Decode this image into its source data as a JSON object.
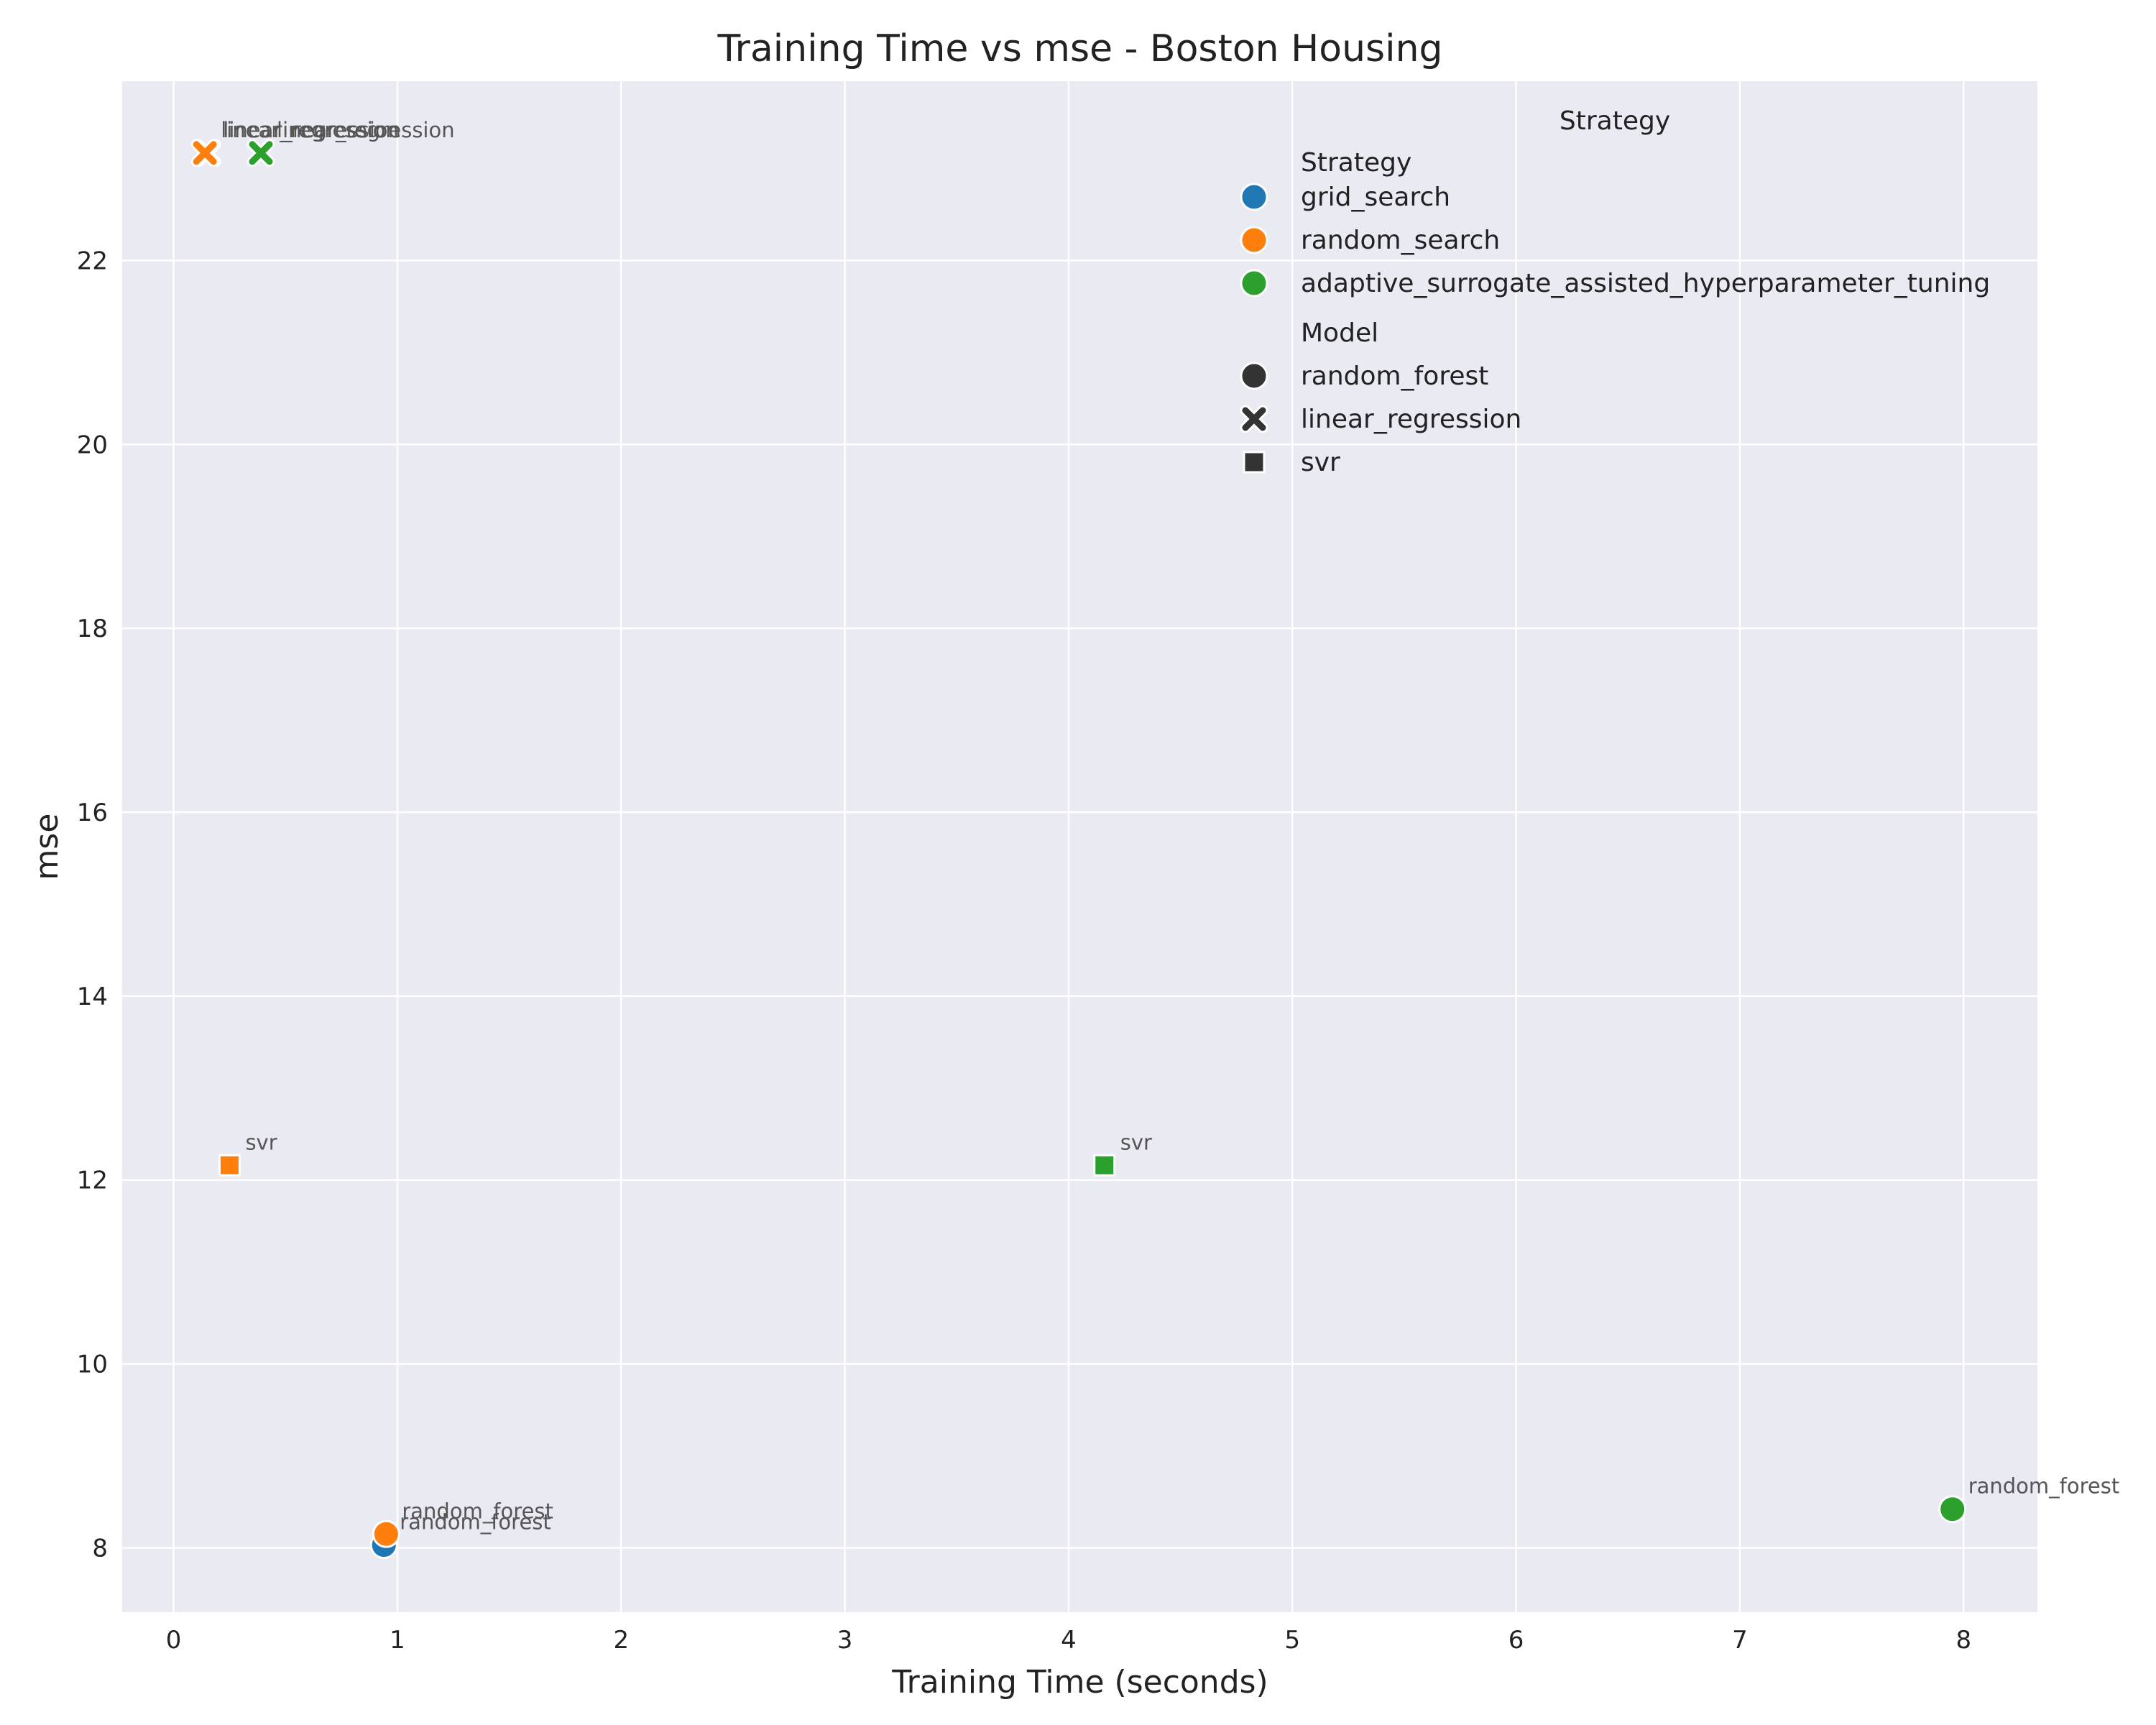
{
  "chart_data": {
    "type": "scatter",
    "title": "Training Time vs mse - Boston Housing",
    "xlabel": "Training Time (seconds)",
    "ylabel": "mse",
    "xlim": [
      -0.23,
      8.33
    ],
    "ylim": [
      7.3,
      23.95
    ],
    "x_ticks": [
      0,
      1,
      2,
      3,
      4,
      5,
      6,
      7,
      8
    ],
    "y_ticks": [
      8,
      10,
      12,
      14,
      16,
      18,
      20,
      22
    ],
    "x_tick_labels": [
      "0",
      "1",
      "2",
      "3",
      "4",
      "5",
      "6",
      "7",
      "8"
    ],
    "y_tick_labels": [
      "8",
      "10",
      "12",
      "14",
      "16",
      "18",
      "20",
      "22"
    ],
    "grid": true,
    "legend_placement": "top-right",
    "legend": {
      "title": "Strategy",
      "strategy_header": "Strategy",
      "model_header": "Model",
      "strategies": [
        {
          "name": "grid_search",
          "color": "#1f77b4"
        },
        {
          "name": "random_search",
          "color": "#ff7f0e"
        },
        {
          "name": "adaptive_surrogate_assisted_hyperparameter_tuning",
          "color": "#2ca02c"
        }
      ],
      "models": [
        {
          "name": "random_forest",
          "marker": "circle"
        },
        {
          "name": "linear_regression",
          "marker": "x"
        },
        {
          "name": "svr",
          "marker": "square"
        }
      ]
    },
    "points": [
      {
        "strategy": "grid_search",
        "model": "random_forest",
        "x": 0.94,
        "y": 8.03,
        "label": "random_forest"
      },
      {
        "strategy": "grid_search",
        "model": "linear_regression",
        "x": 0.15,
        "y": 23.17,
        "label": "linear_regression"
      },
      {
        "strategy": "random_search",
        "model": "random_forest",
        "x": 0.95,
        "y": 8.15,
        "label": "random_forest"
      },
      {
        "strategy": "random_search",
        "model": "linear_regression",
        "x": 0.14,
        "y": 23.17,
        "label": "linear_regression"
      },
      {
        "strategy": "random_search",
        "model": "svr",
        "x": 0.25,
        "y": 12.16,
        "label": "svr"
      },
      {
        "strategy": "adaptive_surrogate_assisted_hyperparameter_tuning",
        "model": "random_forest",
        "x": 7.95,
        "y": 8.42,
        "label": "random_forest"
      },
      {
        "strategy": "adaptive_surrogate_assisted_hyperparameter_tuning",
        "model": "linear_regression",
        "x": 0.39,
        "y": 23.17,
        "label": "linear_regression"
      },
      {
        "strategy": "adaptive_surrogate_assisted_hyperparameter_tuning",
        "model": "svr",
        "x": 4.16,
        "y": 12.16,
        "label": "svr"
      }
    ]
  }
}
